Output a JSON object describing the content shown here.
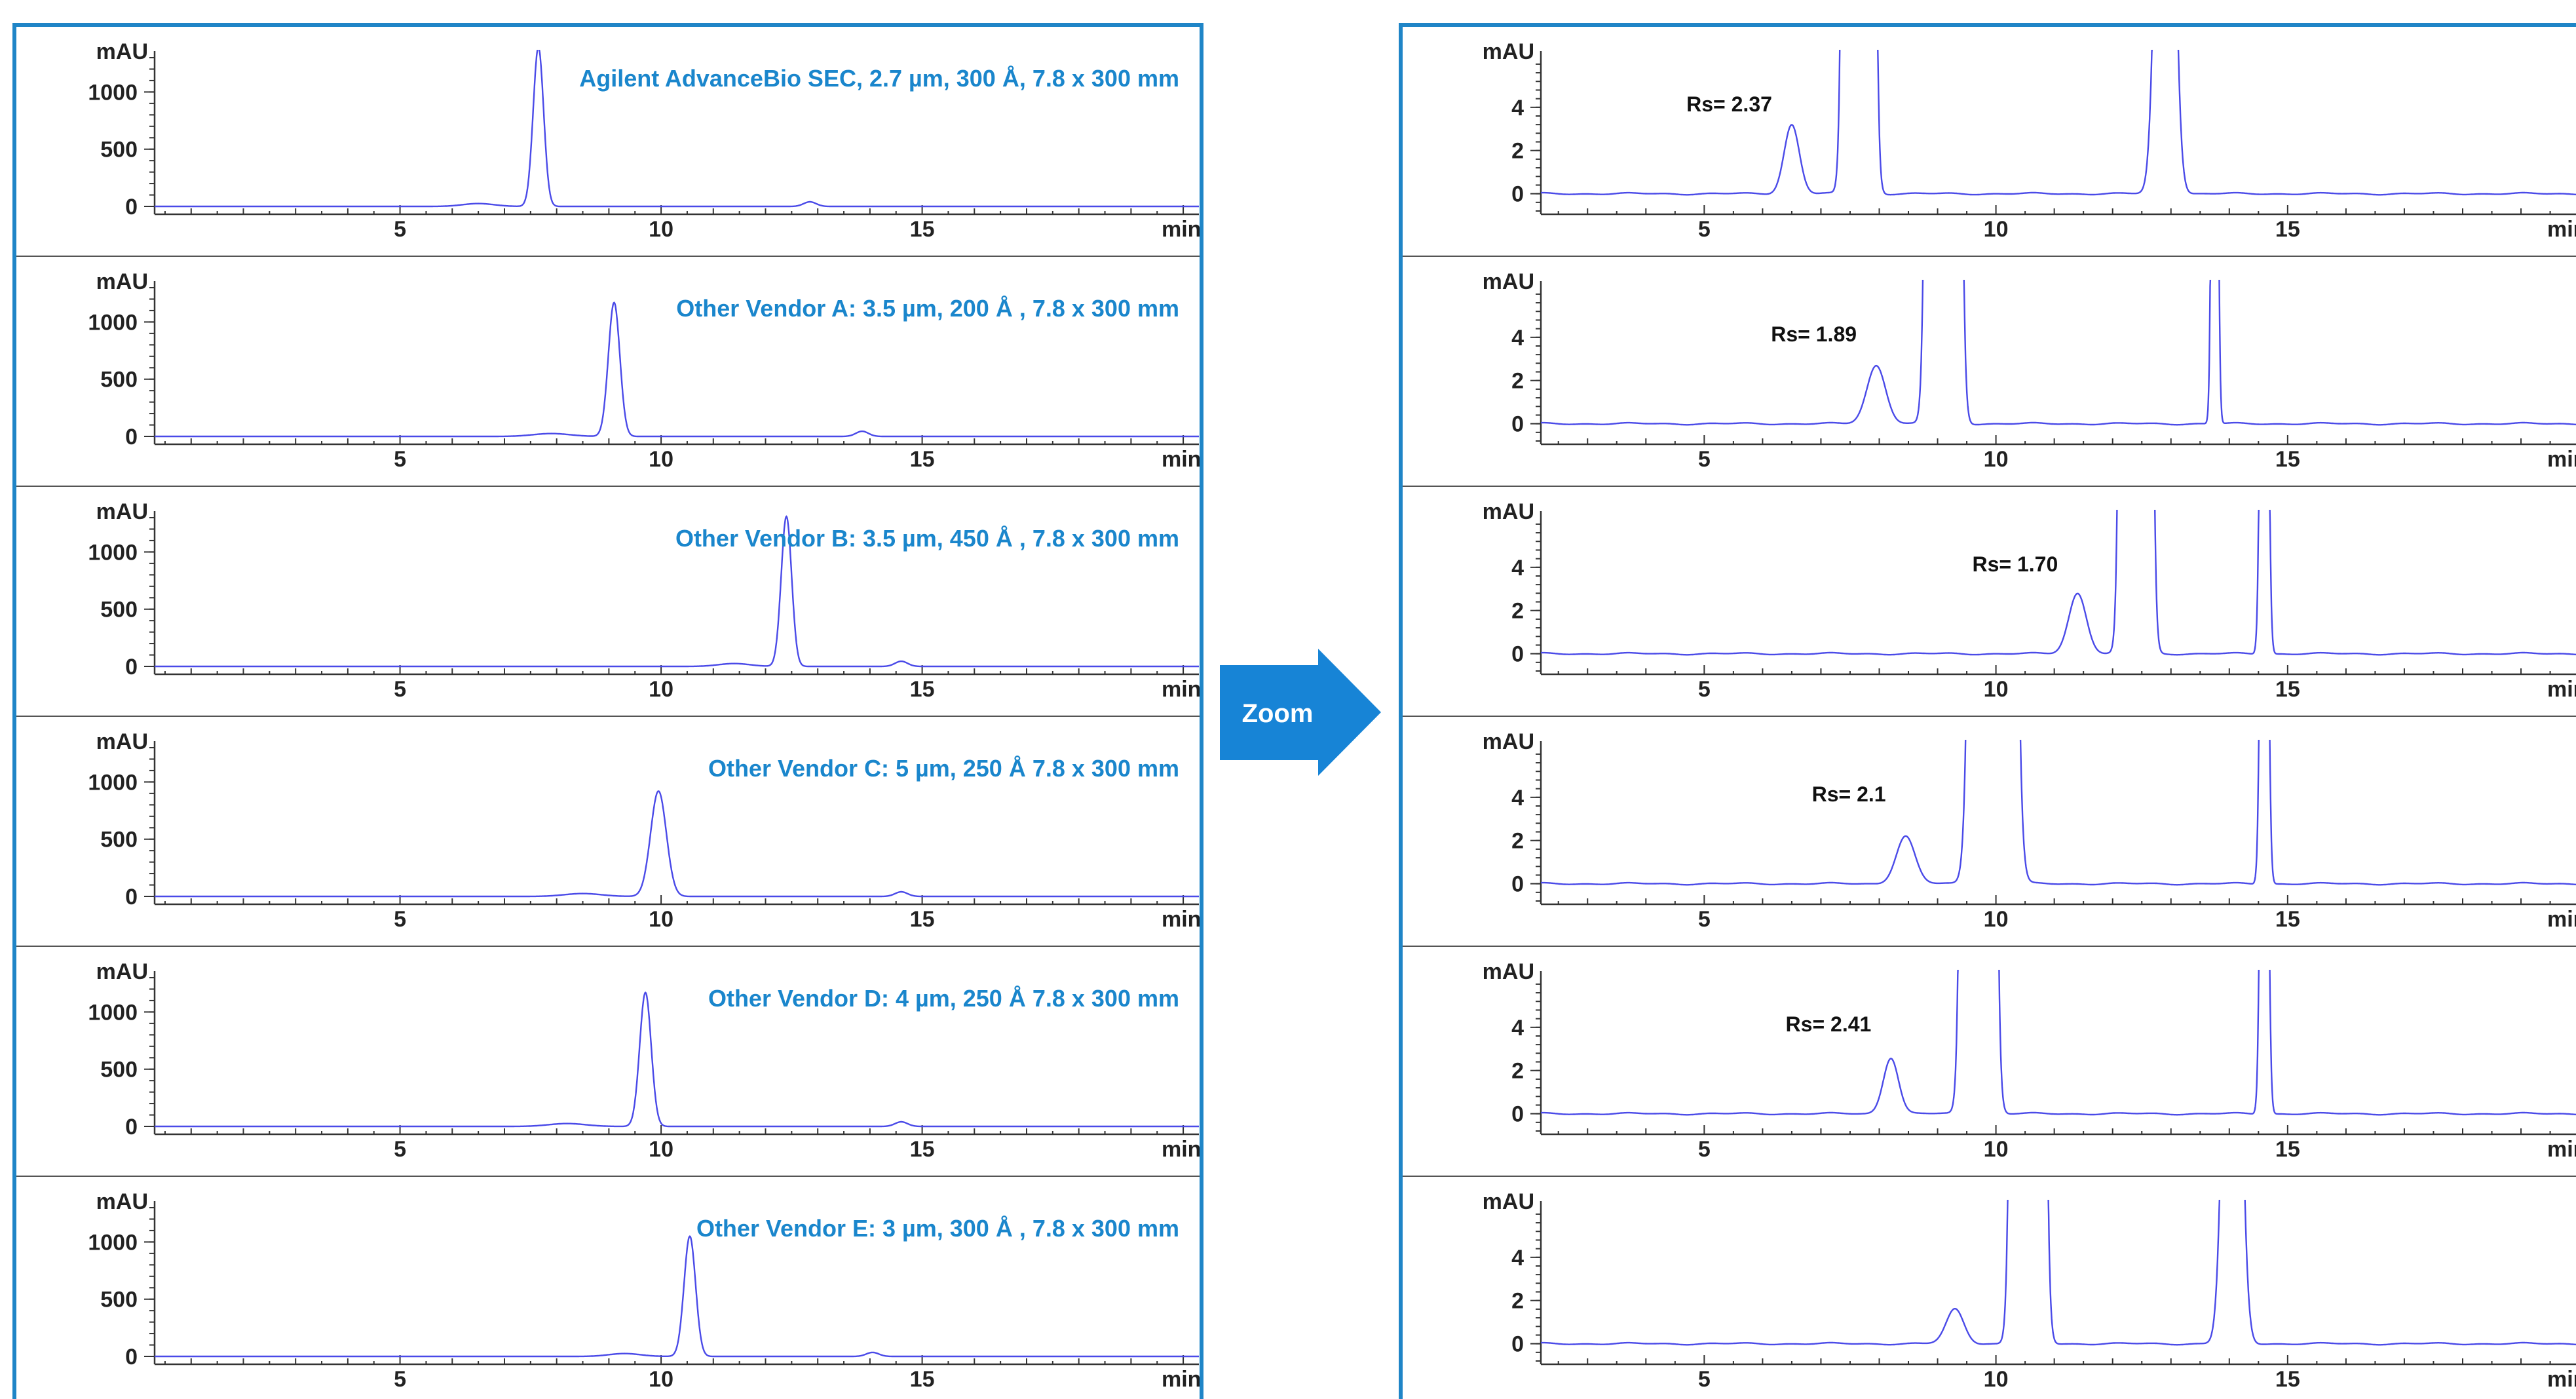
{
  "zoom_label": "Zoom",
  "colors": {
    "frame": "#1f85c7",
    "trace": "#4a4ae8",
    "title": "#1a86cc",
    "arrow": "#1784d6"
  },
  "chart_data": [
    {
      "type": "line",
      "panel": "full",
      "title": "Agilent AdvanceBio SEC, 2.7 µm, 300 Å, 7.8 x 300 mm",
      "ylabel": "mAU",
      "xlabel": "min",
      "xlim": [
        0.3,
        20.3
      ],
      "ylim": [
        -40,
        1300
      ],
      "xticks": [
        5,
        10,
        15
      ],
      "yticks": [
        0,
        500,
        1000
      ],
      "series": [
        {
          "peaks": [
            [
              6.5,
              25,
              0.3
            ],
            [
              7.65,
              1390,
              0.1
            ],
            [
              12.85,
              40,
              0.12
            ]
          ]
        }
      ]
    },
    {
      "type": "line",
      "panel": "full",
      "title": "Other Vendor  A: 3.5 µm, 200 Å , 7.8 x 300 mm",
      "ylabel": "mAU",
      "xlabel": "min",
      "xlim": [
        0.3,
        20.3
      ],
      "ylim": [
        -40,
        1300
      ],
      "xticks": [
        5,
        10,
        15
      ],
      "yticks": [
        0,
        500,
        1000
      ],
      "series": [
        {
          "peaks": [
            [
              7.9,
              25,
              0.35
            ],
            [
              9.1,
              1170,
              0.11
            ],
            [
              13.85,
              45,
              0.12
            ]
          ]
        }
      ]
    },
    {
      "type": "line",
      "panel": "full",
      "title": "Other Vendor  B: 3.5 µm, 450 Å , 7.8 x 300 mm",
      "ylabel": "mAU",
      "xlabel": "min",
      "xlim": [
        0.3,
        20.3
      ],
      "ylim": [
        -40,
        1300
      ],
      "xticks": [
        5,
        10,
        15
      ],
      "yticks": [
        0,
        500,
        1000
      ],
      "series": [
        {
          "peaks": [
            [
              11.4,
              25,
              0.3
            ],
            [
              12.4,
              1310,
              0.1
            ],
            [
              14.6,
              45,
              0.12
            ]
          ]
        }
      ]
    },
    {
      "type": "line",
      "panel": "full",
      "title": "Other Vendor  C: 5 µm, 250 Å 7.8 x 300 mm",
      "ylabel": "mAU",
      "xlabel": "min",
      "xlim": [
        0.3,
        20.3
      ],
      "ylim": [
        -40,
        1300
      ],
      "xticks": [
        5,
        10,
        15
      ],
      "yticks": [
        0,
        500,
        1000
      ],
      "series": [
        {
          "peaks": [
            [
              8.5,
              25,
              0.35
            ],
            [
              9.95,
              920,
              0.15
            ],
            [
              14.6,
              40,
              0.12
            ]
          ]
        }
      ]
    },
    {
      "type": "line",
      "panel": "full",
      "title": "Other Vendor  D: 4 µm, 250 Å 7.8 x 300 mm",
      "ylabel": "mAU",
      "xlabel": "min",
      "xlim": [
        0.3,
        20.3
      ],
      "ylim": [
        -40,
        1300
      ],
      "xticks": [
        5,
        10,
        15
      ],
      "yticks": [
        0,
        500,
        1000
      ],
      "series": [
        {
          "peaks": [
            [
              8.2,
              25,
              0.35
            ],
            [
              9.7,
              1170,
              0.11
            ],
            [
              14.6,
              40,
              0.12
            ]
          ]
        }
      ]
    },
    {
      "type": "line",
      "panel": "full",
      "title": "Other Vendor  E: 3 µm, 300 Å , 7.8 x 300 mm",
      "ylabel": "mAU",
      "xlabel": "min",
      "xlim": [
        0.3,
        20.3
      ],
      "ylim": [
        -40,
        1300
      ],
      "xticks": [
        5,
        10,
        15
      ],
      "yticks": [
        0,
        500,
        1000
      ],
      "series": [
        {
          "peaks": [
            [
              9.3,
              25,
              0.3
            ],
            [
              10.55,
              1050,
              0.11
            ],
            [
              14.05,
              35,
              0.12
            ]
          ]
        }
      ]
    },
    {
      "type": "line",
      "panel": "zoom",
      "annotation": "Rs= 2.37",
      "ylabel": "mAU",
      "xlabel": "min",
      "xlim": [
        2.2,
        20.1
      ],
      "ylim": [
        -0.8,
        6.3
      ],
      "xticks": [
        5,
        10,
        15
      ],
      "yticks": [
        0,
        2,
        4
      ],
      "series": [
        {
          "peaks": [
            [
              6.5,
              3.2,
              0.13
            ],
            [
              7.65,
              1390,
              0.1
            ],
            [
              12.9,
              40,
              0.12
            ]
          ]
        }
      ]
    },
    {
      "type": "line",
      "panel": "zoom",
      "annotation": "Rs= 1.89",
      "ylabel": "mAU",
      "xlabel": "min",
      "xlim": [
        2.2,
        20.1
      ],
      "ylim": [
        -0.8,
        6.3
      ],
      "xticks": [
        5,
        10,
        15
      ],
      "yticks": [
        0,
        2,
        4
      ],
      "series": [
        {
          "peaks": [
            [
              7.95,
              2.7,
              0.16
            ],
            [
              9.1,
              1170,
              0.11
            ],
            [
              13.75,
              45,
              0.04
            ]
          ]
        }
      ]
    },
    {
      "type": "line",
      "panel": "zoom",
      "annotation": "Rs= 1.70",
      "ylabel": "mAU",
      "xlabel": "min",
      "xlim": [
        2.2,
        20.1
      ],
      "ylim": [
        -0.8,
        6.3
      ],
      "xticks": [
        5,
        10,
        15
      ],
      "yticks": [
        0,
        2,
        4
      ],
      "series": [
        {
          "peaks": [
            [
              11.4,
              2.8,
              0.15
            ],
            [
              12.4,
              1310,
              0.1
            ],
            [
              14.6,
              45,
              0.05
            ]
          ]
        }
      ]
    },
    {
      "type": "line",
      "panel": "zoom",
      "annotation": "Rs=  2.1",
      "ylabel": "mAU",
      "xlabel": "min",
      "xlim": [
        2.2,
        20.1
      ],
      "ylim": [
        -0.8,
        6.3
      ],
      "xticks": [
        5,
        10,
        15
      ],
      "yticks": [
        0,
        2,
        4
      ],
      "series": [
        {
          "peaks": [
            [
              8.45,
              2.2,
              0.16
            ],
            [
              9.95,
              920,
              0.15
            ],
            [
              14.6,
              40,
              0.05
            ]
          ]
        }
      ]
    },
    {
      "type": "line",
      "panel": "zoom",
      "annotation": "Rs= 2.41",
      "ylabel": "mAU",
      "xlabel": "min",
      "xlim": [
        2.2,
        20.1
      ],
      "ylim": [
        -0.8,
        6.3
      ],
      "xticks": [
        5,
        10,
        15
      ],
      "yticks": [
        0,
        2,
        4
      ],
      "series": [
        {
          "peaks": [
            [
              8.2,
              2.6,
              0.13
            ],
            [
              9.7,
              1170,
              0.11
            ],
            [
              14.6,
              40,
              0.05
            ]
          ]
        }
      ]
    },
    {
      "type": "line",
      "panel": "zoom",
      "annotation": "",
      "ylabel": "mAU",
      "xlabel": "min",
      "xlim": [
        2.2,
        20.1
      ],
      "ylim": [
        -0.8,
        6.3
      ],
      "xticks": [
        5,
        10,
        15
      ],
      "yticks": [
        0,
        2,
        4
      ],
      "series": [
        {
          "peaks": [
            [
              9.3,
              1.6,
              0.15
            ],
            [
              10.55,
              1050,
              0.11
            ],
            [
              14.05,
              35,
              0.12
            ]
          ]
        }
      ]
    }
  ]
}
